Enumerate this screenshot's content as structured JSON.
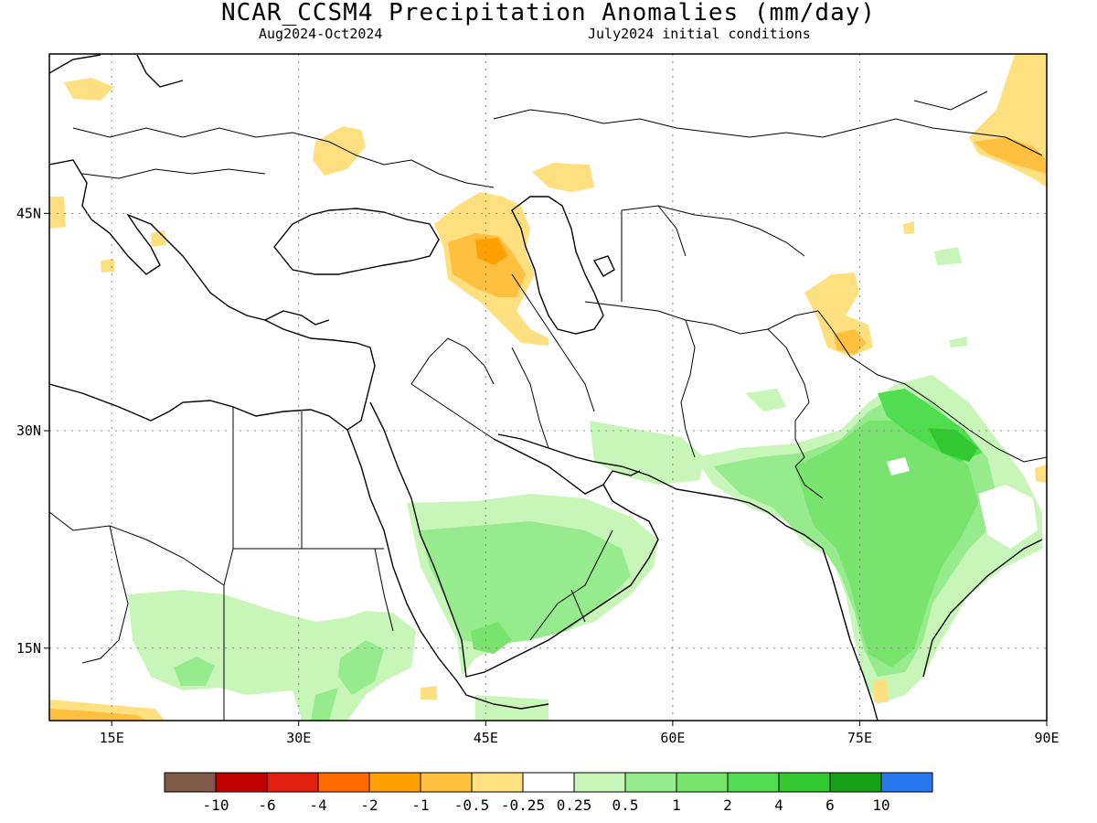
{
  "header": {
    "title": "NCAR_CCSM4 Precipitation Anomalies (mm/day)",
    "period": "Aug2024-Oct2024",
    "initial_conditions": "July2024 initial conditions"
  },
  "map": {
    "lon_range": [
      10,
      90
    ],
    "lat_range": [
      10,
      56
    ],
    "x_ticks": [
      {
        "value": 15,
        "label": "15E"
      },
      {
        "value": 30,
        "label": "30E"
      },
      {
        "value": 45,
        "label": "45E"
      },
      {
        "value": 60,
        "label": "60E"
      },
      {
        "value": 75,
        "label": "75E"
      },
      {
        "value": 90,
        "label": "90E"
      }
    ],
    "y_ticks": [
      {
        "value": 45,
        "label": "45N"
      },
      {
        "value": 30,
        "label": "30N"
      },
      {
        "value": 15,
        "label": "15N"
      }
    ],
    "grid": "dotted"
  },
  "colorbar": {
    "colors": [
      "#7f5a4b",
      "#c00000",
      "#e02010",
      "#ff6a00",
      "#ffa000",
      "#ffc040",
      "#ffe080",
      "#ffffff",
      "#c8f5b8",
      "#96eb8c",
      "#78e46e",
      "#50dc50",
      "#32c832",
      "#14a014",
      "#2878f0"
    ],
    "labels": [
      "-10",
      "-6",
      "-4",
      "-2",
      "-1",
      "-0.5",
      "-0.25",
      "0.25",
      "0.5",
      "1",
      "2",
      "4",
      "6",
      "10"
    ]
  },
  "anomaly_regions": [
    {
      "name": "india-wet",
      "level": 2,
      "color": "#78e46e"
    },
    {
      "name": "india-north-wet",
      "level": 4,
      "color": "#50dc50"
    },
    {
      "name": "arabia-wet",
      "level": 1,
      "color": "#96eb8c"
    },
    {
      "name": "sahel-wet",
      "level": 0.5,
      "color": "#c8f5b8"
    },
    {
      "name": "caucasus-dry",
      "level": -0.5,
      "color": "#ffc040"
    },
    {
      "name": "ukraine-dry",
      "level": -0.25,
      "color": "#ffe080"
    },
    {
      "name": "mongolia-dry",
      "level": -0.25,
      "color": "#ffe080"
    }
  ]
}
